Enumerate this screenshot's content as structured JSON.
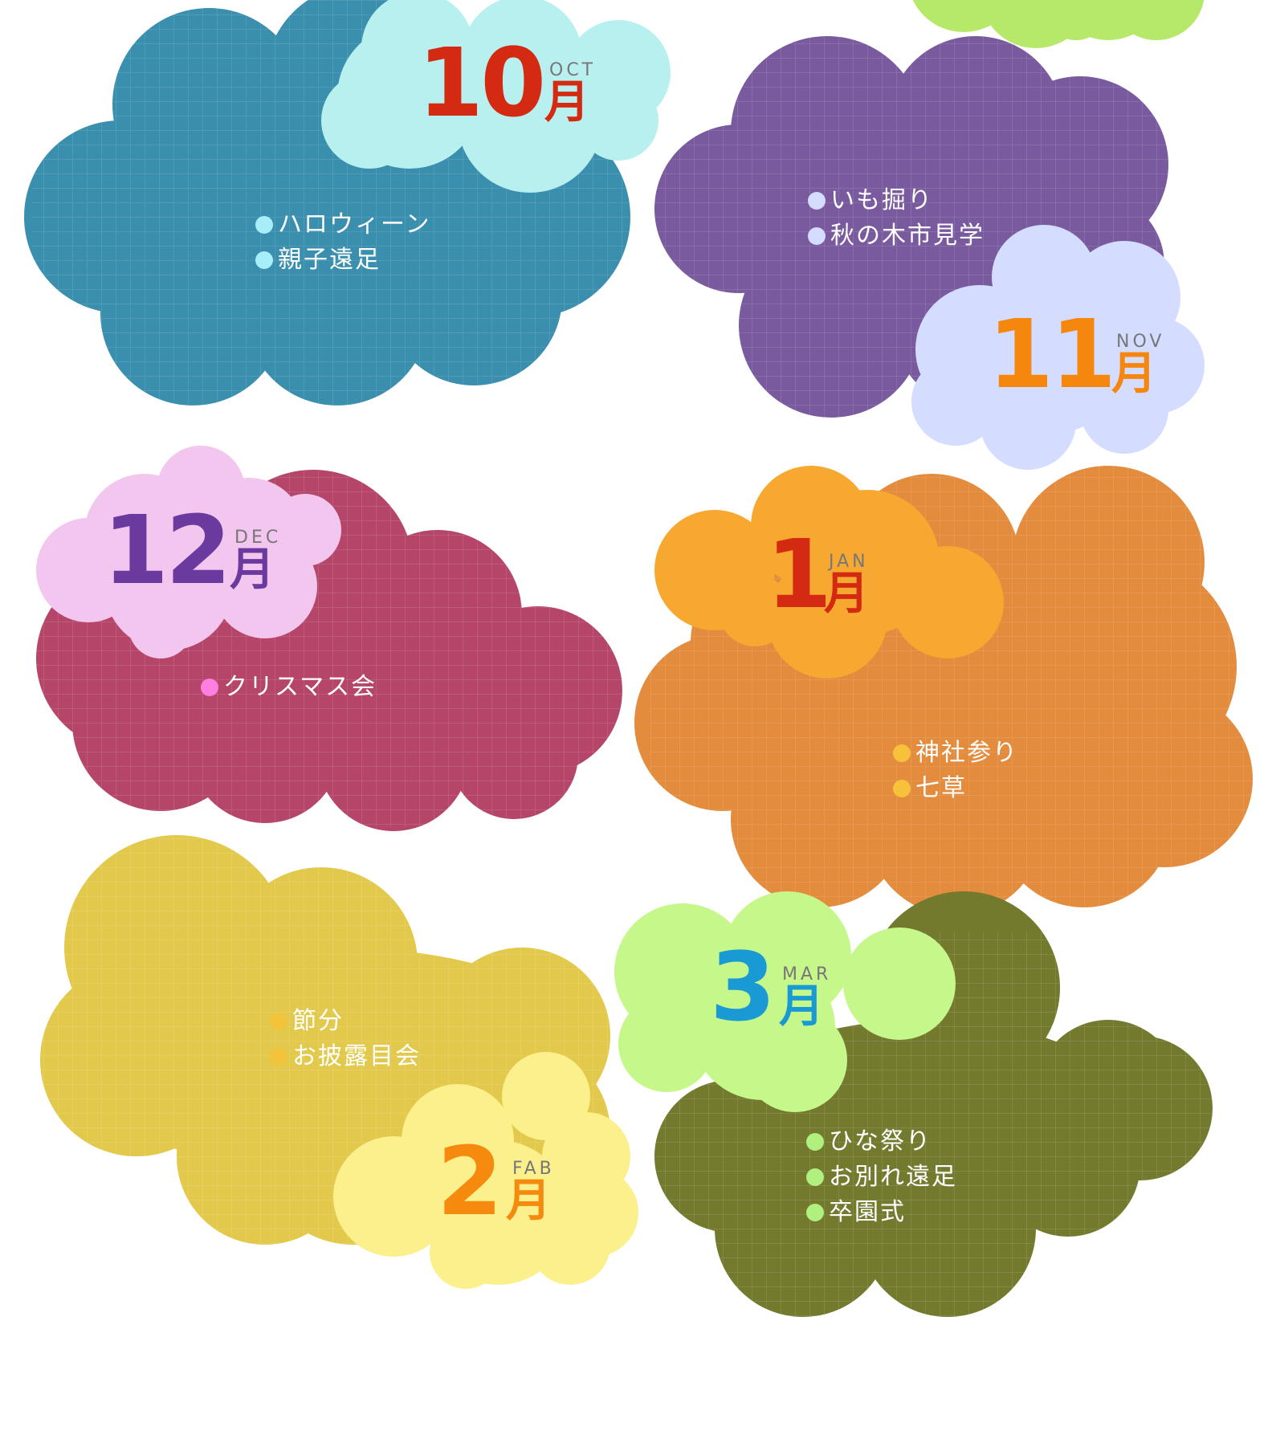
{
  "months": [
    {
      "id": "oct",
      "number": "10",
      "kanji": "月",
      "english": "OCT",
      "colors": {
        "main": "#3a8fae",
        "bubble": "#b8f0f0",
        "number": "#d42a12",
        "kanji": "#d42a12",
        "dot": "#a8eef8"
      },
      "events": [
        "ハロウィーン",
        "親子遠足"
      ]
    },
    {
      "id": "nov",
      "number": "11",
      "kanji": "月",
      "english": "NOV",
      "colors": {
        "main": "#7a5a9e",
        "bubble": "#d4dcff",
        "number": "#f5870e",
        "kanji": "#f5870e",
        "dot": "#d4dcff"
      },
      "events": [
        "いも掘り",
        "秋の木市見学"
      ]
    },
    {
      "id": "dec",
      "number": "12",
      "kanji": "月",
      "english": "DEC",
      "colors": {
        "main": "#b5466a",
        "bubble": "#f3c6ef",
        "number": "#6b3a9e",
        "kanji": "#6b3a9e",
        "dot": "#ff7ee0"
      },
      "events": [
        "クリスマス会"
      ]
    },
    {
      "id": "jan",
      "number": "1",
      "kanji": "月",
      "english": "JAN",
      "colors": {
        "main": "#e38c3e",
        "bubble": "#f6a830",
        "number": "#d42a12",
        "kanji": "#d42a12",
        "dot": "#f7c23a"
      },
      "events": [
        "神社参り",
        "七草"
      ]
    },
    {
      "id": "feb",
      "number": "2",
      "kanji": "月",
      "english": "FAB",
      "colors": {
        "main": "#e2c94c",
        "bubble": "#fbf08c",
        "number": "#f58a0e",
        "kanji": "#f58a0e",
        "dot": "#f3c43a"
      },
      "events": [
        "節分",
        "お披露目会"
      ]
    },
    {
      "id": "mar",
      "number": "3",
      "kanji": "月",
      "english": "MAR",
      "colors": {
        "main": "#737a2e",
        "bubble": "#c6f78a",
        "number": "#1a9ad4",
        "kanji": "#1a9ad4",
        "dot": "#b0f07e"
      },
      "events": [
        "ひな祭り",
        "お別れ遠足",
        "卒園式"
      ]
    }
  ],
  "top_partial_cloud": {
    "color": "#b6e86a"
  },
  "english_label_color": "#777777"
}
